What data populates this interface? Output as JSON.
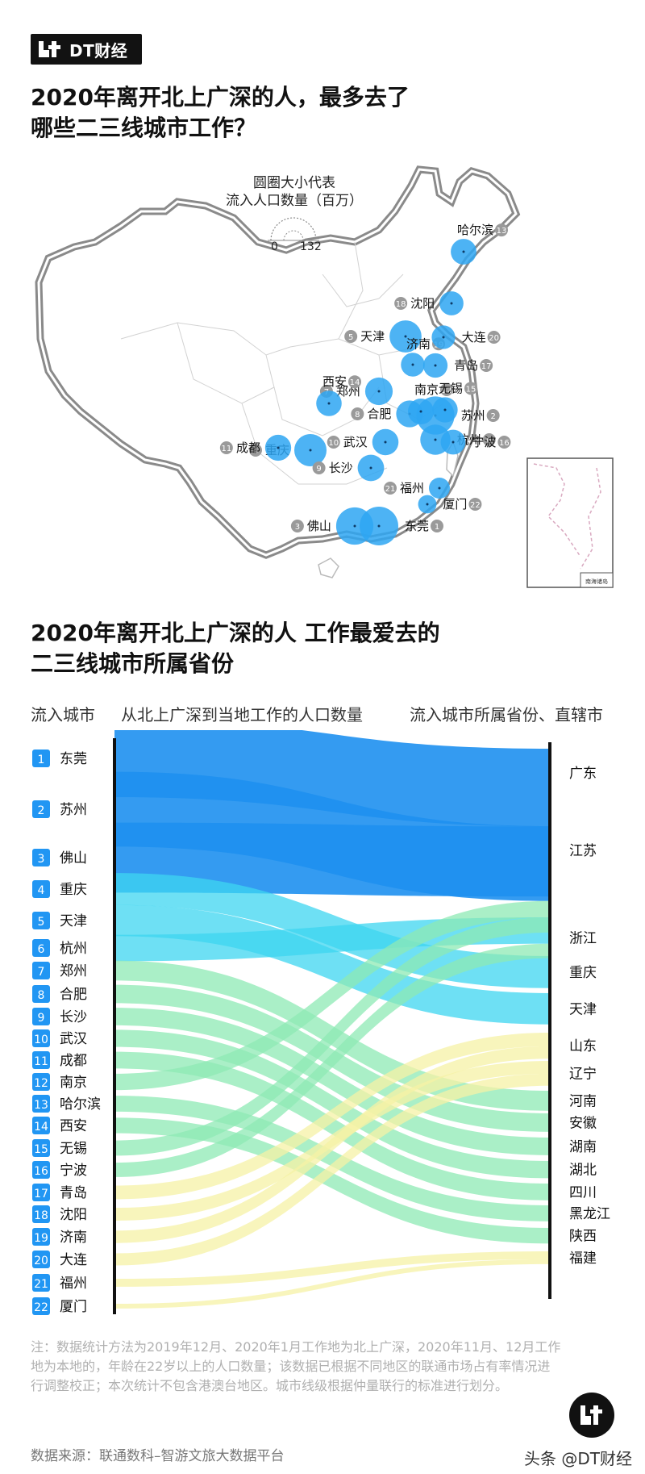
{
  "header": {
    "brand": "DT财经",
    "title_line1": "2020年离开北上广深的人，最多去了",
    "title_line2": "哪些二三线城市工作？"
  },
  "map": {
    "legend_title_line1": "圆圈大小代表",
    "legend_title_line2": "流入人口数量（百万）",
    "legend_min": "0",
    "legend_max": "132",
    "inset_label": "南海诸岛",
    "bubble_color": "#2ea6f2"
  },
  "section2": {
    "title_line1": "2020年离开北上广深的人 工作最爱去的",
    "title_line2": "二三线城市所属省份"
  },
  "columns": {
    "left": "流入城市",
    "middle": "从北上广深到当地工作的人口数量",
    "right": "流入城市所属省份、直辖市"
  },
  "chart_data": {
    "type": "sankey",
    "title": "2020年离开北上广深的人 工作最爱去的二三线城市所属省份",
    "cities": [
      {
        "rank": "1",
        "name": "东莞",
        "province": "广东",
        "value": 13.2
      },
      {
        "rank": "2",
        "name": "苏州",
        "province": "江苏",
        "value": 12.7
      },
      {
        "rank": "3",
        "name": "佛山",
        "province": "广东",
        "value": 11.9
      },
      {
        "rank": "4",
        "name": "重庆",
        "province": "重庆",
        "value": 8.0
      },
      {
        "rank": "5",
        "name": "天津",
        "province": "天津",
        "value": 7.8
      },
      {
        "rank": "6",
        "name": "杭州",
        "province": "浙江",
        "value": 6.6
      },
      {
        "rank": "7",
        "name": "郑州",
        "province": "河南",
        "value": 5.0
      },
      {
        "rank": "8",
        "name": "合肥",
        "province": "安徽",
        "value": 4.6
      },
      {
        "rank": "9",
        "name": "长沙",
        "province": "湖南",
        "value": 4.4
      },
      {
        "rank": "10",
        "name": "武汉",
        "province": "湖北",
        "value": 4.3
      },
      {
        "rank": "11",
        "name": "成都",
        "province": "四川",
        "value": 4.2
      },
      {
        "rank": "12",
        "name": "南京",
        "province": "江苏",
        "value": 4.1
      },
      {
        "rank": "13",
        "name": "哈尔滨",
        "province": "黑龙江",
        "value": 4.0
      },
      {
        "rank": "14",
        "name": "西安",
        "province": "陕西",
        "value": 3.9
      },
      {
        "rank": "15",
        "name": "无锡",
        "province": "江苏",
        "value": 3.8
      },
      {
        "rank": "16",
        "name": "宁波",
        "province": "浙江",
        "value": 3.6
      },
      {
        "rank": "17",
        "name": "青岛",
        "province": "山东",
        "value": 3.4
      },
      {
        "rank": "18",
        "name": "沈阳",
        "province": "辽宁",
        "value": 3.2
      },
      {
        "rank": "19",
        "name": "济南",
        "province": "山东",
        "value": 3.1
      },
      {
        "rank": "20",
        "name": "大连",
        "province": "辽宁",
        "value": 3.0
      },
      {
        "rank": "21",
        "name": "福州",
        "province": "福建",
        "value": 2.0
      },
      {
        "rank": "22",
        "name": "厦门",
        "province": "福建",
        "value": 1.2
      }
    ],
    "provinces": [
      "广东",
      "江苏",
      "浙江",
      "重庆",
      "天津",
      "山东",
      "辽宁",
      "河南",
      "安徽",
      "湖南",
      "湖北",
      "四川",
      "黑龙江",
      "陕西",
      "福建"
    ],
    "colors": {
      "rank_badge": "#2196f3",
      "dark": "#1e90f0",
      "cyan": "#3ed6f0",
      "green": "#8eeab4",
      "yellow": "#f6f2a6"
    }
  },
  "footer": {
    "note": "注：数据统计方法为2019年12月、2020年1月工作地为北上广深，2020年11月、12月工作地为本地的，年龄在22岁以上的人口数量；该数据已根据不同地区的联通市场占有率情况进行调整校正；本次统计不包含港澳台地区。城市线级根据仲量联行的标准进行划分。",
    "source": "数据来源：联通数科–智游文旅大数据平台",
    "brand": "头条 @DT财经"
  }
}
